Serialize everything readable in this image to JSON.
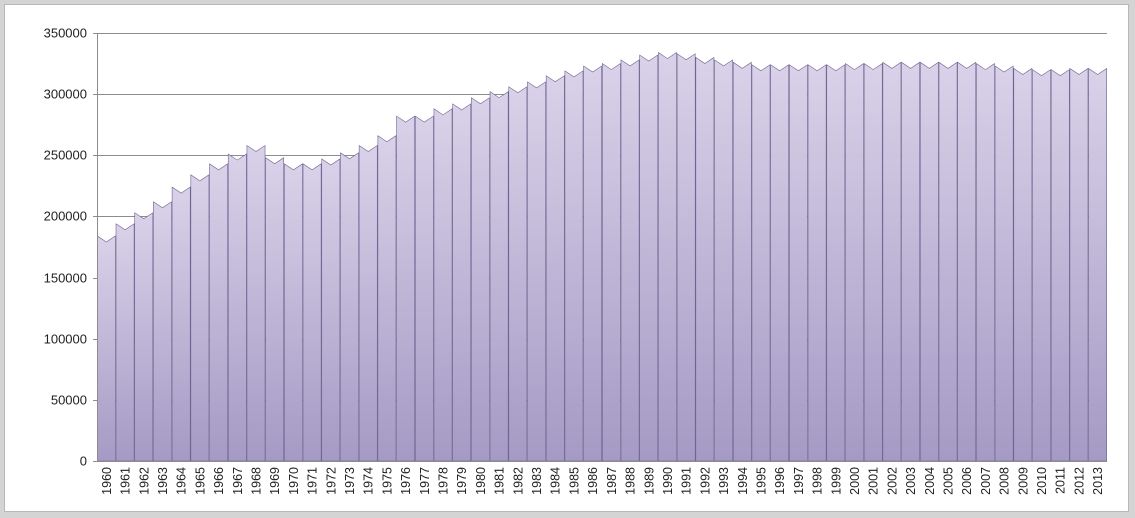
{
  "chart_data": {
    "type": "area",
    "title": "",
    "xlabel": "",
    "ylabel": "",
    "ylim": [
      0,
      350000
    ],
    "yticks": [
      0,
      50000,
      100000,
      150000,
      200000,
      250000,
      300000,
      350000
    ],
    "grid": true,
    "legend": "none",
    "categories": [
      "1960",
      "1961",
      "1962",
      "1963",
      "1964",
      "1965",
      "1966",
      "1967",
      "1968",
      "1969",
      "1970",
      "1971",
      "1972",
      "1973",
      "1974",
      "1975",
      "1976",
      "1977",
      "1978",
      "1979",
      "1980",
      "1981",
      "1982",
      "1983",
      "1984",
      "1985",
      "1986",
      "1987",
      "1988",
      "1989",
      "1990",
      "1991",
      "1992",
      "1993",
      "1994",
      "1995",
      "1996",
      "1997",
      "1998",
      "1999",
      "2000",
      "2001",
      "2002",
      "2003",
      "2004",
      "2005",
      "2006",
      "2007",
      "2008",
      "2009",
      "2010",
      "2011",
      "2012",
      "2013"
    ],
    "values": [
      184000,
      194000,
      203000,
      212000,
      224000,
      234000,
      243000,
      251000,
      258000,
      248000,
      243000,
      243000,
      247000,
      252000,
      258000,
      266000,
      282000,
      282000,
      288000,
      292000,
      297000,
      302000,
      306000,
      310000,
      315000,
      319000,
      323000,
      325000,
      328000,
      332000,
      334000,
      333000,
      330000,
      328000,
      326000,
      324000,
      324000,
      324000,
      324000,
      324000,
      325000,
      325000,
      326000,
      326000,
      326000,
      326000,
      326000,
      325000,
      323000,
      321000,
      320000,
      320000,
      321000,
      321000
    ],
    "colors": {
      "bar_top": "#d9d2e9",
      "bar_bottom": "#a59ac4",
      "bar_edge": "#6e6290",
      "grid": "#8c8c8c",
      "background": "#d4d4d4",
      "plot_background": "#ffffff"
    }
  }
}
